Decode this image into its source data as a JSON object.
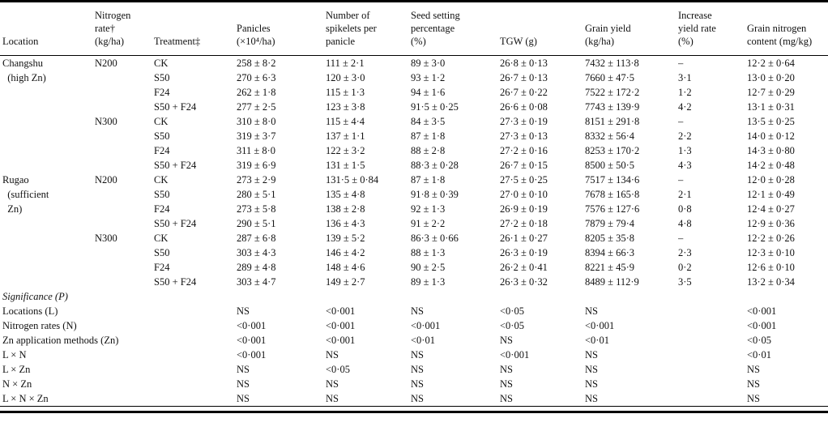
{
  "table": {
    "columns": [
      "Location",
      "Nitrogen\nrate†\n(kg/ha)",
      "Treatment‡",
      "Panicles\n(×10⁴/ha)",
      "Number of\nspikelets per\npanicle",
      "Seed setting\npercentage\n(%)",
      "TGW (g)",
      "Grain yield\n(kg/ha)",
      "Increase\nyield rate\n(%)",
      "Grain nitrogen\ncontent (mg/kg)"
    ],
    "rows": [
      {
        "location": "Changshu",
        "nitrogen": "N200",
        "treatment": "CK",
        "values": [
          "258 ± 8·2",
          "111 ± 2·1",
          "89 ± 3·0",
          "26·8 ± 0·13",
          "7432 ± 113·8",
          "–",
          "12·2 ± 0·64"
        ]
      },
      {
        "location": "  (high Zn)",
        "nitrogen": "",
        "treatment": "S50",
        "values": [
          "270 ± 6·3",
          "120 ± 3·0",
          "93 ± 1·2",
          "26·7 ± 0·13",
          "7660 ± 47·5",
          "3·1",
          "13·0 ± 0·20"
        ]
      },
      {
        "location": "",
        "nitrogen": "",
        "treatment": "F24",
        "values": [
          "262 ± 1·8",
          "115 ± 1·3",
          "94 ± 1·6",
          "26·7 ± 0·22",
          "7522 ± 172·2",
          "1·2",
          "12·7 ± 0·29"
        ]
      },
      {
        "location": "",
        "nitrogen": "",
        "treatment": "S50 + F24",
        "values": [
          "277 ± 2·5",
          "123 ± 3·8",
          "91·5 ± 0·25",
          "26·6 ± 0·08",
          "7743 ± 139·9",
          "4·2",
          "13·1 ± 0·31"
        ]
      },
      {
        "location": "",
        "nitrogen": "N300",
        "treatment": "CK",
        "values": [
          "310 ± 8·0",
          "115 ± 4·4",
          "84 ± 3·5",
          "27·3 ± 0·19",
          "8151 ± 291·8",
          "–",
          "13·5 ± 0·25"
        ]
      },
      {
        "location": "",
        "nitrogen": "",
        "treatment": "S50",
        "values": [
          "319 ± 3·7",
          "137 ± 1·1",
          "87 ± 1·8",
          "27·3 ± 0·13",
          "8332 ± 56·4",
          "2·2",
          "14·0 ± 0·12"
        ]
      },
      {
        "location": "",
        "nitrogen": "",
        "treatment": "F24",
        "values": [
          "311 ± 8·0",
          "122 ± 3·2",
          "88 ± 2·8",
          "27·2 ± 0·16",
          "8253 ± 170·2",
          "1·3",
          "14·3 ± 0·80"
        ]
      },
      {
        "location": "",
        "nitrogen": "",
        "treatment": "S50 + F24",
        "values": [
          "319 ± 6·9",
          "131 ± 1·5",
          "88·3 ± 0·28",
          "26·7 ± 0·15",
          "8500 ± 50·5",
          "4·3",
          "14·2 ± 0·48"
        ]
      },
      {
        "location": "Rugao",
        "nitrogen": "N200",
        "treatment": "CK",
        "values": [
          "273 ± 2·9",
          "131·5 ± 0·84",
          "87 ± 1·8",
          "27·5 ± 0·25",
          "7517 ± 134·6",
          "–",
          "12·0 ± 0·28"
        ]
      },
      {
        "location": "  (sufficient",
        "nitrogen": "",
        "treatment": "S50",
        "values": [
          "280 ± 5·1",
          "135 ± 4·8",
          "91·8 ± 0·39",
          "27·0 ± 0·10",
          "7678 ± 165·8",
          "2·1",
          "12·1 ± 0·49"
        ]
      },
      {
        "location": "  Zn)",
        "nitrogen": "",
        "treatment": "F24",
        "values": [
          "273 ± 5·8",
          "138 ± 2·8",
          "92 ± 1·3",
          "26·9 ± 0·19",
          "7576 ± 127·6",
          "0·8",
          "12·4 ± 0·27"
        ]
      },
      {
        "location": "",
        "nitrogen": "",
        "treatment": "S50 + F24",
        "values": [
          "290 ± 5·1",
          "136 ± 4·3",
          "91 ± 2·2",
          "27·2 ± 0·18",
          "7879 ± 79·4",
          "4·8",
          "12·9 ± 0·36"
        ]
      },
      {
        "location": "",
        "nitrogen": "N300",
        "treatment": "CK",
        "values": [
          "287 ± 6·8",
          "139 ± 5·2",
          "86·3 ± 0·66",
          "26·1 ± 0·27",
          "8205 ± 35·8",
          "–",
          "12·2 ± 0·26"
        ]
      },
      {
        "location": "",
        "nitrogen": "",
        "treatment": "S50",
        "values": [
          "303 ± 4·3",
          "146 ± 4·2",
          "88 ± 1·3",
          "26·3 ± 0·19",
          "8394 ± 66·3",
          "2·3",
          "12·3 ± 0·10"
        ]
      },
      {
        "location": "",
        "nitrogen": "",
        "treatment": "F24",
        "values": [
          "289 ± 4·8",
          "148 ± 4·6",
          "90 ± 2·5",
          "26·2 ± 0·41",
          "8221 ± 45·9",
          "0·2",
          "12·6 ± 0·10"
        ]
      },
      {
        "location": "",
        "nitrogen": "",
        "treatment": "S50 + F24",
        "values": [
          "303 ± 4·7",
          "149 ± 2·7",
          "89 ± 1·3",
          "26·3 ± 0·32",
          "8489 ± 112·9",
          "3·5",
          "13·2 ± 0·34"
        ]
      }
    ],
    "significance": {
      "title": "Significance (P)",
      "rows": [
        {
          "label": "Locations (L)",
          "values": [
            "NS",
            "<0·001",
            "NS",
            "<0·05",
            "NS",
            "",
            "<0·001"
          ]
        },
        {
          "label": "Nitrogen rates (N)",
          "values": [
            "<0·001",
            "<0·001",
            "<0·001",
            "<0·05",
            "<0·001",
            "",
            "<0·001"
          ]
        },
        {
          "label": "Zn application methods (Zn)",
          "values": [
            "<0·001",
            "<0·001",
            "<0·01",
            "NS",
            "<0·01",
            "",
            "<0·05"
          ]
        },
        {
          "label": "L × N",
          "values": [
            "<0·001",
            "NS",
            "NS",
            "<0·001",
            "NS",
            "",
            "<0·01"
          ]
        },
        {
          "label": "L × Zn",
          "values": [
            "NS",
            "<0·05",
            "NS",
            "NS",
            "NS",
            "",
            "NS"
          ]
        },
        {
          "label": "N × Zn",
          "values": [
            "NS",
            "NS",
            "NS",
            "NS",
            "NS",
            "",
            "NS"
          ]
        },
        {
          "label": "L × N × Zn",
          "values": [
            "NS",
            "NS",
            "NS",
            "NS",
            "NS",
            "",
            "NS"
          ]
        }
      ]
    }
  }
}
